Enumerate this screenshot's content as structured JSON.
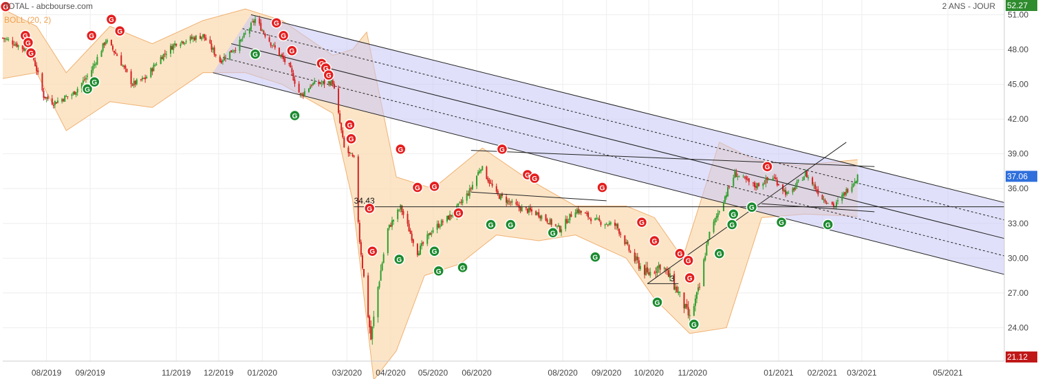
{
  "header": {
    "title": "TOTAL - abcbourse.com",
    "period": "2 ANS - JOUR",
    "indicator": "BOLL (20, 2)"
  },
  "colors": {
    "up": "#2e9e2e",
    "down": "#d42020",
    "band_fill": "#fbdcb4",
    "band_line": "#f0b070",
    "channel_fill": "#c7c7f5",
    "signal_red": "#e41e1e",
    "signal_green": "#1b8a2e",
    "last_price_bg": "#2f6fdc",
    "max_bg": "#2e8b2e",
    "min_bg": "#c01818",
    "grid": "#eeeeee"
  },
  "chart_data": {
    "type": "candlestick",
    "y_range": [
      21.12,
      52.27
    ],
    "y_ticks": [
      "51.00",
      "48.00",
      "45.00",
      "42.00",
      "39.00",
      "36.00",
      "33.00",
      "30.00",
      "27.00",
      "24.00"
    ],
    "y_tick_values": [
      51,
      48,
      45,
      42,
      39,
      36,
      33,
      30,
      27,
      24
    ],
    "x_range": [
      "2019-07-01",
      "2021-06-10"
    ],
    "x_ticks": [
      {
        "label": "08/2019",
        "date": "2019-08-01"
      },
      {
        "label": "09/2019",
        "date": "2019-09-01"
      },
      {
        "label": "11/2019",
        "date": "2019-11-01"
      },
      {
        "label": "12/2019",
        "date": "2019-12-01"
      },
      {
        "label": "01/2020",
        "date": "2020-01-01"
      },
      {
        "label": "03/2020",
        "date": "2020-03-01"
      },
      {
        "label": "04/2020",
        "date": "2020-04-01"
      },
      {
        "label": "05/2020",
        "date": "2020-05-01"
      },
      {
        "label": "06/2020",
        "date": "2020-06-01"
      },
      {
        "label": "08/2020",
        "date": "2020-08-01"
      },
      {
        "label": "09/2020",
        "date": "2020-09-01"
      },
      {
        "label": "10/2020",
        "date": "2020-10-01"
      },
      {
        "label": "11/2020",
        "date": "2020-11-01"
      },
      {
        "label": "01/2021",
        "date": "2021-01-01"
      },
      {
        "label": "02/2021",
        "date": "2021-02-01"
      },
      {
        "label": "03/2021",
        "date": "2021-03-01"
      },
      {
        "label": "05/2021",
        "date": "2021-05-01"
      }
    ],
    "price_path": [
      {
        "date": "2019-07-01",
        "price": 49.0
      },
      {
        "date": "2019-07-10",
        "price": 48.5
      },
      {
        "date": "2019-07-22",
        "price": 47.6
      },
      {
        "date": "2019-07-30",
        "price": 44.0
      },
      {
        "date": "2019-08-06",
        "price": 43.4
      },
      {
        "date": "2019-08-20",
        "price": 44.2
      },
      {
        "date": "2019-09-01",
        "price": 46.0
      },
      {
        "date": "2019-09-12",
        "price": 48.8
      },
      {
        "date": "2019-09-20",
        "price": 47.5
      },
      {
        "date": "2019-10-01",
        "price": 45.0
      },
      {
        "date": "2019-10-10",
        "price": 45.5
      },
      {
        "date": "2019-10-20",
        "price": 47.2
      },
      {
        "date": "2019-11-01",
        "price": 48.6
      },
      {
        "date": "2019-11-20",
        "price": 49.2
      },
      {
        "date": "2019-12-02",
        "price": 47.0
      },
      {
        "date": "2019-12-15",
        "price": 48.4
      },
      {
        "date": "2019-12-27",
        "price": 50.6
      },
      {
        "date": "2020-01-08",
        "price": 48.4
      },
      {
        "date": "2020-01-20",
        "price": 46.5
      },
      {
        "date": "2020-01-28",
        "price": 44.0
      },
      {
        "date": "2020-02-05",
        "price": 45.0
      },
      {
        "date": "2020-02-20",
        "price": 45.2
      },
      {
        "date": "2020-02-28",
        "price": 39.5
      },
      {
        "date": "2020-03-06",
        "price": 38.5
      },
      {
        "date": "2020-03-10",
        "price": 31.5
      },
      {
        "date": "2020-03-18",
        "price": 23.0
      },
      {
        "date": "2020-03-23",
        "price": 27.5
      },
      {
        "date": "2020-03-30",
        "price": 32.5
      },
      {
        "date": "2020-04-08",
        "price": 34.4
      },
      {
        "date": "2020-04-20",
        "price": 30.5
      },
      {
        "date": "2020-05-01",
        "price": 32.5
      },
      {
        "date": "2020-05-15",
        "price": 33.8
      },
      {
        "date": "2020-05-27",
        "price": 35.8
      },
      {
        "date": "2020-06-04",
        "price": 37.9
      },
      {
        "date": "2020-06-15",
        "price": 35.5
      },
      {
        "date": "2020-06-30",
        "price": 34.4
      },
      {
        "date": "2020-07-15",
        "price": 33.8
      },
      {
        "date": "2020-07-30",
        "price": 32.5
      },
      {
        "date": "2020-08-10",
        "price": 34.2
      },
      {
        "date": "2020-08-25",
        "price": 33.2
      },
      {
        "date": "2020-09-08",
        "price": 32.8
      },
      {
        "date": "2020-09-20",
        "price": 30.0
      },
      {
        "date": "2020-09-30",
        "price": 28.6
      },
      {
        "date": "2020-10-10",
        "price": 29.5
      },
      {
        "date": "2020-10-22",
        "price": 27.0
      },
      {
        "date": "2020-10-30",
        "price": 24.8
      },
      {
        "date": "2020-11-06",
        "price": 27.5
      },
      {
        "date": "2020-11-12",
        "price": 31.8
      },
      {
        "date": "2020-11-20",
        "price": 34.2
      },
      {
        "date": "2020-12-01",
        "price": 37.3
      },
      {
        "date": "2020-12-15",
        "price": 36.2
      },
      {
        "date": "2020-12-28",
        "price": 37.0
      },
      {
        "date": "2021-01-08",
        "price": 35.4
      },
      {
        "date": "2021-01-20",
        "price": 37.3
      },
      {
        "date": "2021-02-01",
        "price": 35.2
      },
      {
        "date": "2021-02-10",
        "price": 34.5
      },
      {
        "date": "2021-02-18",
        "price": 35.8
      },
      {
        "date": "2021-02-26",
        "price": 37.06
      }
    ],
    "bollinger": {
      "label": "BOLL (20, 2)",
      "upper": [
        {
          "date": "2019-07-01",
          "price": 51.5
        },
        {
          "date": "2019-07-25",
          "price": 50.0
        },
        {
          "date": "2019-08-15",
          "price": 46.0
        },
        {
          "date": "2019-09-15",
          "price": 50.0
        },
        {
          "date": "2019-10-15",
          "price": 48.5
        },
        {
          "date": "2019-11-20",
          "price": 50.5
        },
        {
          "date": "2019-12-20",
          "price": 51.5
        },
        {
          "date": "2020-01-15",
          "price": 50.5
        },
        {
          "date": "2020-02-20",
          "price": 47.5
        },
        {
          "date": "2020-03-05",
          "price": 48.0
        },
        {
          "date": "2020-03-15",
          "price": 49.5
        },
        {
          "date": "2020-04-05",
          "price": 37.0
        },
        {
          "date": "2020-05-01",
          "price": 36.0
        },
        {
          "date": "2020-06-05",
          "price": 39.5
        },
        {
          "date": "2020-07-05",
          "price": 37.0
        },
        {
          "date": "2020-08-10",
          "price": 34.5
        },
        {
          "date": "2020-09-15",
          "price": 34.5
        },
        {
          "date": "2020-10-05",
          "price": 33.5
        },
        {
          "date": "2020-10-25",
          "price": 30.0
        },
        {
          "date": "2020-11-20",
          "price": 40.0
        },
        {
          "date": "2020-12-15",
          "price": 38.5
        },
        {
          "date": "2021-01-15",
          "price": 38.0
        },
        {
          "date": "2021-02-26",
          "price": 38.5
        }
      ],
      "lower": [
        {
          "date": "2019-07-01",
          "price": 45.5
        },
        {
          "date": "2019-07-25",
          "price": 46.0
        },
        {
          "date": "2019-08-15",
          "price": 41.0
        },
        {
          "date": "2019-09-15",
          "price": 43.5
        },
        {
          "date": "2019-10-15",
          "price": 43.0
        },
        {
          "date": "2019-11-20",
          "price": 46.0
        },
        {
          "date": "2019-12-20",
          "price": 46.0
        },
        {
          "date": "2020-01-15",
          "price": 45.0
        },
        {
          "date": "2020-02-20",
          "price": 42.5
        },
        {
          "date": "2020-03-05",
          "price": 35.0
        },
        {
          "date": "2020-03-20",
          "price": 19.5
        },
        {
          "date": "2020-04-05",
          "price": 22.0
        },
        {
          "date": "2020-04-25",
          "price": 28.5
        },
        {
          "date": "2020-05-20",
          "price": 29.5
        },
        {
          "date": "2020-06-15",
          "price": 32.0
        },
        {
          "date": "2020-07-15",
          "price": 31.5
        },
        {
          "date": "2020-08-10",
          "price": 32.0
        },
        {
          "date": "2020-09-15",
          "price": 30.0
        },
        {
          "date": "2020-10-05",
          "price": 26.5
        },
        {
          "date": "2020-10-30",
          "price": 23.5
        },
        {
          "date": "2020-11-25",
          "price": 24.0
        },
        {
          "date": "2020-12-20",
          "price": 33.5
        },
        {
          "date": "2021-01-20",
          "price": 33.8
        },
        {
          "date": "2021-02-26",
          "price": 33.6
        }
      ]
    },
    "channel": {
      "upper": [
        {
          "date": "2019-12-24",
          "price": 51.0
        },
        {
          "date": "2021-06-10",
          "price": 34.8
        }
      ],
      "lower": [
        {
          "date": "2019-11-27",
          "price": 46.0
        },
        {
          "date": "2021-06-10",
          "price": 28.6
        }
      ],
      "mid": [
        {
          "date": "2019-12-10",
          "price": 48.5
        },
        {
          "date": "2021-06-10",
          "price": 31.7
        }
      ],
      "dotted": [
        [
          {
            "date": "2019-12-18",
            "price": 49.8
          },
          {
            "date": "2021-06-10",
            "price": 33.3
          }
        ],
        [
          {
            "date": "2019-12-04",
            "price": 47.3
          },
          {
            "date": "2021-06-10",
            "price": 30.2
          }
        ]
      ]
    },
    "lines": [
      {
        "from": {
          "date": "2020-03-06",
          "price": 34.43
        },
        "to": {
          "date": "2021-06-10",
          "price": 34.43
        }
      },
      {
        "from": {
          "date": "2020-05-28",
          "price": 39.3
        },
        "to": {
          "date": "2021-03-10",
          "price": 37.9
        }
      },
      {
        "from": {
          "date": "2020-05-28",
          "price": 35.7
        },
        "to": {
          "date": "2020-09-01",
          "price": 34.95
        }
      },
      {
        "from": {
          "date": "2020-09-30",
          "price": 27.8
        },
        "to": {
          "date": "2021-02-18",
          "price": 40.0
        }
      },
      {
        "from": {
          "date": "2020-09-30",
          "price": 27.8
        },
        "to": {
          "date": "2020-10-22",
          "price": 27.8
        }
      },
      {
        "from": {
          "date": "2020-12-20",
          "price": 34.7
        },
        "to": {
          "date": "2021-03-10",
          "price": 34.0
        }
      }
    ],
    "annotations": [
      {
        "text": "34.43",
        "date": "2020-03-06",
        "price": 34.7
      },
      {
        "text": "3",
        "date": "2020-10-16",
        "price": 28.0
      }
    ],
    "signals": [
      {
        "type": "red",
        "date": "2019-07-03",
        "price": 51.7
      },
      {
        "type": "red",
        "date": "2019-07-17",
        "price": 49.2
      },
      {
        "type": "red",
        "date": "2019-07-19",
        "price": 48.6
      },
      {
        "type": "red",
        "date": "2019-07-21",
        "price": 47.7
      },
      {
        "type": "green",
        "date": "2019-08-30",
        "price": 44.6
      },
      {
        "type": "green",
        "date": "2019-09-04",
        "price": 45.2
      },
      {
        "type": "red",
        "date": "2019-09-02",
        "price": 49.2
      },
      {
        "type": "red",
        "date": "2019-09-16",
        "price": 50.6
      },
      {
        "type": "red",
        "date": "2019-09-22",
        "price": 49.6
      },
      {
        "type": "green",
        "date": "2019-12-27",
        "price": 47.6
      },
      {
        "type": "red",
        "date": "2020-01-11",
        "price": 50.3
      },
      {
        "type": "red",
        "date": "2020-01-16",
        "price": 49.2
      },
      {
        "type": "red",
        "date": "2020-01-22",
        "price": 47.9
      },
      {
        "type": "red",
        "date": "2020-02-12",
        "price": 46.8
      },
      {
        "type": "red",
        "date": "2020-02-15",
        "price": 46.4
      },
      {
        "type": "red",
        "date": "2020-02-17",
        "price": 45.8
      },
      {
        "type": "green",
        "date": "2020-01-24",
        "price": 42.3
      },
      {
        "type": "red",
        "date": "2020-03-03",
        "price": 41.5
      },
      {
        "type": "red",
        "date": "2020-03-04",
        "price": 40.3
      },
      {
        "type": "red",
        "date": "2020-03-17",
        "price": 34.3
      },
      {
        "type": "red",
        "date": "2020-03-19",
        "price": 30.6
      },
      {
        "type": "red",
        "date": "2020-04-08",
        "price": 39.4
      },
      {
        "type": "green",
        "date": "2020-04-07",
        "price": 29.9
      },
      {
        "type": "red",
        "date": "2020-04-20",
        "price": 36.1
      },
      {
        "type": "red",
        "date": "2020-05-02",
        "price": 36.2
      },
      {
        "type": "green",
        "date": "2020-05-02",
        "price": 30.6
      },
      {
        "type": "green",
        "date": "2020-05-05",
        "price": 28.9
      },
      {
        "type": "red",
        "date": "2020-05-19",
        "price": 33.9
      },
      {
        "type": "green",
        "date": "2020-05-22",
        "price": 29.2
      },
      {
        "type": "green",
        "date": "2020-06-11",
        "price": 32.9
      },
      {
        "type": "red",
        "date": "2020-06-19",
        "price": 39.4
      },
      {
        "type": "green",
        "date": "2020-06-25",
        "price": 32.9
      },
      {
        "type": "red",
        "date": "2020-07-07",
        "price": 37.2
      },
      {
        "type": "red",
        "date": "2020-07-12",
        "price": 36.9
      },
      {
        "type": "green",
        "date": "2020-07-25",
        "price": 32.2
      },
      {
        "type": "green",
        "date": "2020-08-24",
        "price": 30.1
      },
      {
        "type": "red",
        "date": "2020-08-29",
        "price": 36.1
      },
      {
        "type": "red",
        "date": "2020-09-26",
        "price": 33.1
      },
      {
        "type": "red",
        "date": "2020-10-05",
        "price": 31.5
      },
      {
        "type": "green",
        "date": "2020-10-07",
        "price": 26.2
      },
      {
        "type": "red",
        "date": "2020-10-23",
        "price": 30.4
      },
      {
        "type": "red",
        "date": "2020-10-29",
        "price": 29.8
      },
      {
        "type": "red",
        "date": "2020-10-30",
        "price": 28.3
      },
      {
        "type": "green",
        "date": "2020-11-02",
        "price": 24.3
      },
      {
        "type": "green",
        "date": "2020-11-20",
        "price": 30.4
      },
      {
        "type": "green",
        "date": "2020-11-29",
        "price": 32.9
      },
      {
        "type": "green",
        "date": "2020-11-30",
        "price": 33.8
      },
      {
        "type": "green",
        "date": "2020-12-13",
        "price": 34.4
      },
      {
        "type": "red",
        "date": "2020-12-24",
        "price": 37.9
      },
      {
        "type": "green",
        "date": "2021-01-03",
        "price": 33.1
      },
      {
        "type": "green",
        "date": "2021-02-05",
        "price": 32.9
      }
    ],
    "price_labels": {
      "max": "52.27",
      "last": "37.06",
      "last_value": 37.06,
      "min": "21.12"
    }
  }
}
